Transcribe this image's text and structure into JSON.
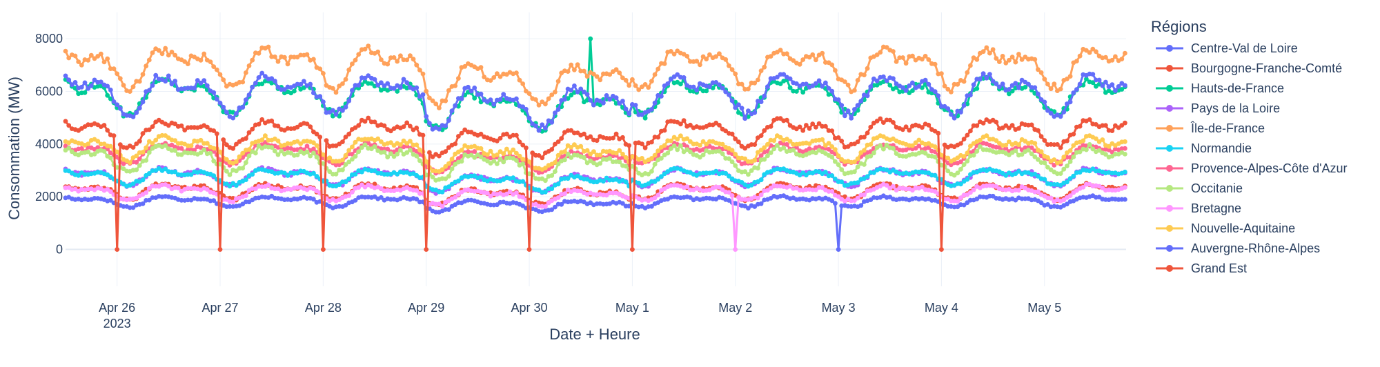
{
  "chart_data": {
    "type": "line",
    "xlabel": "Date + Heure",
    "ylabel": "Consommation (MW)",
    "x_range": [
      "2023-04-25 12:00",
      "2023-05-05 19:00"
    ],
    "ylim": [
      -1400,
      9000
    ],
    "y_ticks": [
      0,
      2000,
      4000,
      6000,
      8000
    ],
    "y_tick_labels": [
      "0",
      "2000",
      "4000",
      "6000",
      "8000"
    ],
    "x_ticks": [
      "2023-04-26",
      "2023-04-27",
      "2023-04-28",
      "2023-04-29",
      "2023-04-30",
      "2023-05-01",
      "2023-05-02",
      "2023-05-03",
      "2023-05-04",
      "2023-05-05"
    ],
    "x_tick_labels": [
      "Apr 26",
      "Apr 27",
      "Apr 28",
      "Apr 29",
      "Apr 30",
      "May 1",
      "May 2",
      "May 3",
      "May 4",
      "May 5"
    ],
    "x_tick_sublabel": "2023",
    "grid": true,
    "legend": {
      "title": "Régions",
      "position": "right"
    },
    "series": [
      {
        "name": "Centre-Val de Loire",
        "color": "#636efa",
        "base": 1850,
        "amp": 250,
        "drops": [
          "2023-05-03"
        ]
      },
      {
        "name": "Bourgogne-Franche-Comté",
        "color": "#ef553b",
        "base": 2250,
        "amp": 350,
        "drops": []
      },
      {
        "name": "Hauts-de-France",
        "color": "#00cc96",
        "base": 5900,
        "amp": 800,
        "drops": [],
        "spike": [
          "2023-04-30 14:00",
          8000
        ]
      },
      {
        "name": "Pays de la Loire",
        "color": "#ab63fa",
        "base": 2800,
        "amp": 400,
        "drops": []
      },
      {
        "name": "Île-de-France",
        "color": "#ffa15a",
        "base": 7000,
        "amp": 900,
        "drops": []
      },
      {
        "name": "Normandie",
        "color": "#19d3f3",
        "base": 2800,
        "amp": 350,
        "drops": []
      },
      {
        "name": "Provence-Alpes-Côte d'Azur",
        "color": "#ff6692",
        "base": 3700,
        "amp": 450,
        "drops": []
      },
      {
        "name": "Occitanie",
        "color": "#b6e880",
        "base": 3500,
        "amp": 600,
        "drops": []
      },
      {
        "name": "Bretagne",
        "color": "#ff97ff",
        "base": 2200,
        "amp": 350,
        "drops": [
          "2023-05-02"
        ]
      },
      {
        "name": "Nouvelle-Aquitaine",
        "color": "#fecb52",
        "base": 3900,
        "amp": 550,
        "drops": []
      },
      {
        "name": "Auvergne-Rhône-Alpes",
        "color": "#636efa",
        "base": 6000,
        "amp": 900,
        "drops": []
      },
      {
        "name": "Grand Est",
        "color": "#ef553b",
        "base": 4500,
        "amp": 600,
        "drops": [
          "2023-04-26",
          "2023-04-27",
          "2023-04-28",
          "2023-04-29",
          "2023-04-30",
          "2023-05-01",
          "2023-05-04"
        ]
      }
    ]
  }
}
